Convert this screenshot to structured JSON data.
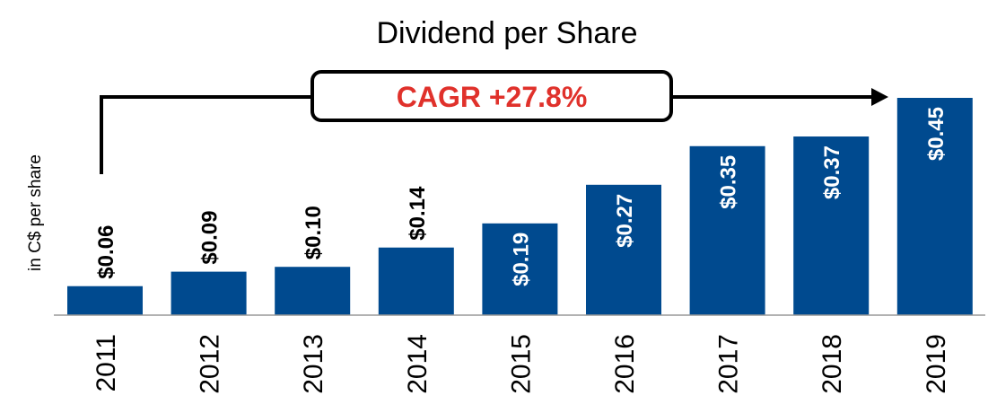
{
  "chart_data": {
    "type": "bar",
    "title": "Dividend per Share",
    "ylabel": "in C$ per share",
    "xlabel": "",
    "categories": [
      "2011",
      "2012",
      "2013",
      "2014",
      "2015",
      "2016",
      "2017",
      "2018",
      "2019"
    ],
    "values": [
      0.06,
      0.09,
      0.1,
      0.14,
      0.19,
      0.27,
      0.35,
      0.37,
      0.45
    ],
    "data_labels": [
      "$0.06",
      "$0.09",
      "$0.10",
      "$0.14",
      "$0.19",
      "$0.27",
      "$0.35",
      "$0.37",
      "$0.45"
    ],
    "ylim": [
      0,
      0.45
    ],
    "grid": false,
    "legend": "none",
    "annotation": "CAGR +27.8%"
  },
  "colors": {
    "bar": "#004A8F",
    "annotation_text": "#E0312B",
    "label_inside": "#ffffff",
    "label_outside": "#000000",
    "axis": "#000000"
  }
}
